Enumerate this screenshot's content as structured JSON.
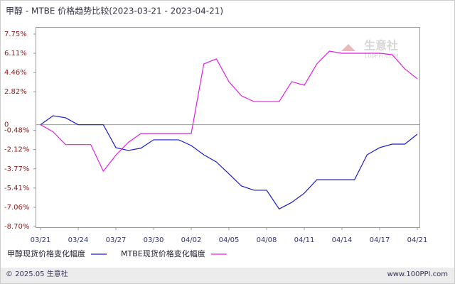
{
  "chart_data": {
    "type": "line",
    "title": "甲醇 - MTBE 价格趋势比较(2023-03-21 - 2023-04-21)",
    "categories": [
      "03/21",
      null,
      null,
      "03/24",
      null,
      null,
      "03/27",
      null,
      null,
      "03/30",
      null,
      null,
      "04/02",
      null,
      null,
      "04/05",
      null,
      null,
      "04/08",
      null,
      null,
      "04/11",
      null,
      null,
      "04/14",
      null,
      null,
      "04/17",
      null,
      null,
      "04/21"
    ],
    "series": [
      {
        "name": "甲醇现货价格变化幅度",
        "color": "#1a1acd",
        "values": [
          0,
          0.77,
          0.59,
          0,
          0,
          0,
          -1.96,
          -2.2,
          -2.0,
          -1.29,
          -1.29,
          -1.29,
          -1.78,
          -2.57,
          -3.18,
          -4.2,
          -5.24,
          -5.6,
          -5.6,
          -7.2,
          -6.64,
          -5.85,
          -4.7,
          -4.7,
          -4.7,
          -4.7,
          -2.57,
          -1.96,
          -1.66,
          -1.66,
          -0.81
        ]
      },
      {
        "name": "MTBE现货价格变化幅度",
        "color": "#e21ee2",
        "values": [
          0,
          -0.6,
          -1.7,
          -1.7,
          -1.7,
          -3.97,
          -2.6,
          -1.5,
          -0.75,
          -0.75,
          -0.75,
          -0.75,
          -0.75,
          5.2,
          5.63,
          3.68,
          2.47,
          1.98,
          1.98,
          1.98,
          3.68,
          3.38,
          5.2,
          6.29,
          6.11,
          6.11,
          6.11,
          6.11,
          5.99,
          4.78,
          3.93
        ]
      }
    ],
    "ylim": [
      -8.7,
      7.75
    ],
    "yticks": [
      {
        "value": 7.75,
        "label": "7.75%"
      },
      {
        "value": 6.11,
        "label": "6.11%"
      },
      {
        "value": 4.46,
        "label": "4.46%"
      },
      {
        "value": 2.82,
        "label": "2.82%"
      },
      0,
      {
        "value": -0.48,
        "label": "-0.48%"
      },
      {
        "value": -2.12,
        "label": "-2.12%"
      },
      {
        "value": -3.77,
        "label": "-3.77%"
      },
      {
        "value": -5.41,
        "label": "-5.41%"
      },
      {
        "value": -7.06,
        "label": "-7.06%"
      },
      {
        "value": -8.7,
        "label": "-8.70%"
      }
    ],
    "watermark": {
      "name": "生意社",
      "site": "100PPI.COM"
    },
    "footer": {
      "left": "© 2025.05 生意社",
      "right": "www.100PPI.com"
    }
  }
}
